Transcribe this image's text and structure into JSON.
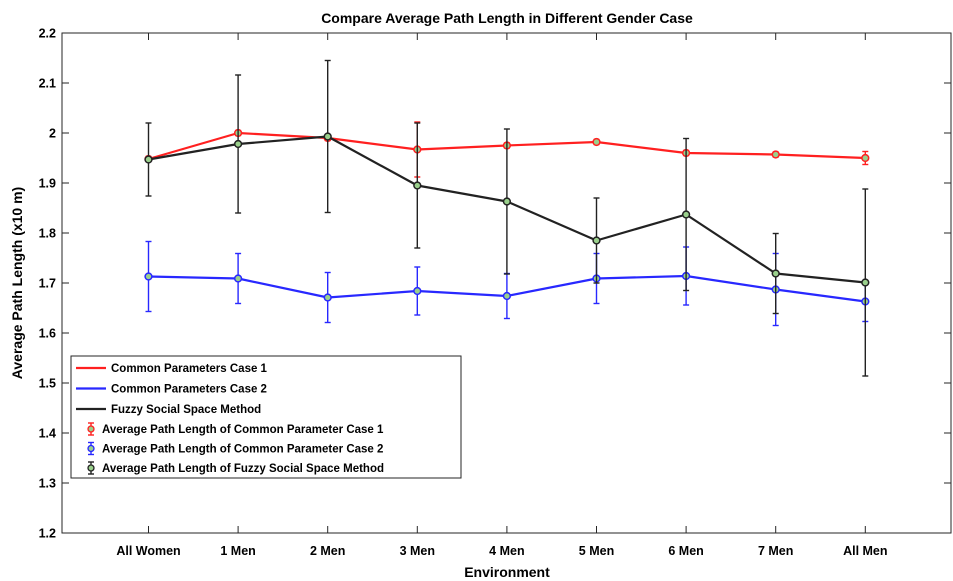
{
  "chart_data": {
    "type": "line",
    "title": "Compare Average Path Length in Different Gender Case",
    "xlabel": "Environment",
    "ylabel": "Average Path Length (x10 m)",
    "categories": [
      "All Women",
      "1 Men",
      "2 Men",
      "3 Men",
      "4 Men",
      "5 Men",
      "6 Men",
      "7 Men",
      "All Men"
    ],
    "ylim": [
      1.2,
      2.2
    ],
    "yticks": [
      "1.2",
      "1.3",
      "1.4",
      "1.5",
      "1.6",
      "1.7",
      "1.8",
      "1.9",
      "2",
      "2.1",
      "2.2"
    ],
    "grid": false,
    "legend_position": "bottom-left",
    "series": [
      {
        "name": "Common Parameters Case 1",
        "marker_name": "Average Path Length of Common Parameter Case 1",
        "color": "#ff2020",
        "values": [
          1.948,
          2.0,
          1.99,
          1.967,
          1.975,
          1.982,
          1.96,
          1.957,
          1.95
        ],
        "errors": [
          0.005,
          0.005,
          0.005,
          0.055,
          0.005,
          0.005,
          0.005,
          0.005,
          0.013
        ]
      },
      {
        "name": "Common Parameters Case 2",
        "marker_name": "Average Path Length of Common Parameter Case 2",
        "color": "#2828ff",
        "values": [
          1.713,
          1.709,
          1.671,
          1.684,
          1.674,
          1.709,
          1.714,
          1.687,
          1.663
        ],
        "errors": [
          0.07,
          0.05,
          0.05,
          0.048,
          0.045,
          0.05,
          0.058,
          0.072,
          0.04
        ]
      },
      {
        "name": "Fuzzy Social Space Method",
        "marker_name": "Average Path Length of Fuzzy Social Space Method",
        "color": "#222222",
        "values": [
          1.947,
          1.978,
          1.993,
          1.895,
          1.863,
          1.785,
          1.837,
          1.719,
          1.701
        ],
        "errors": [
          0.073,
          0.138,
          0.152,
          0.125,
          0.145,
          0.085,
          0.152,
          0.08,
          0.187
        ]
      }
    ]
  }
}
